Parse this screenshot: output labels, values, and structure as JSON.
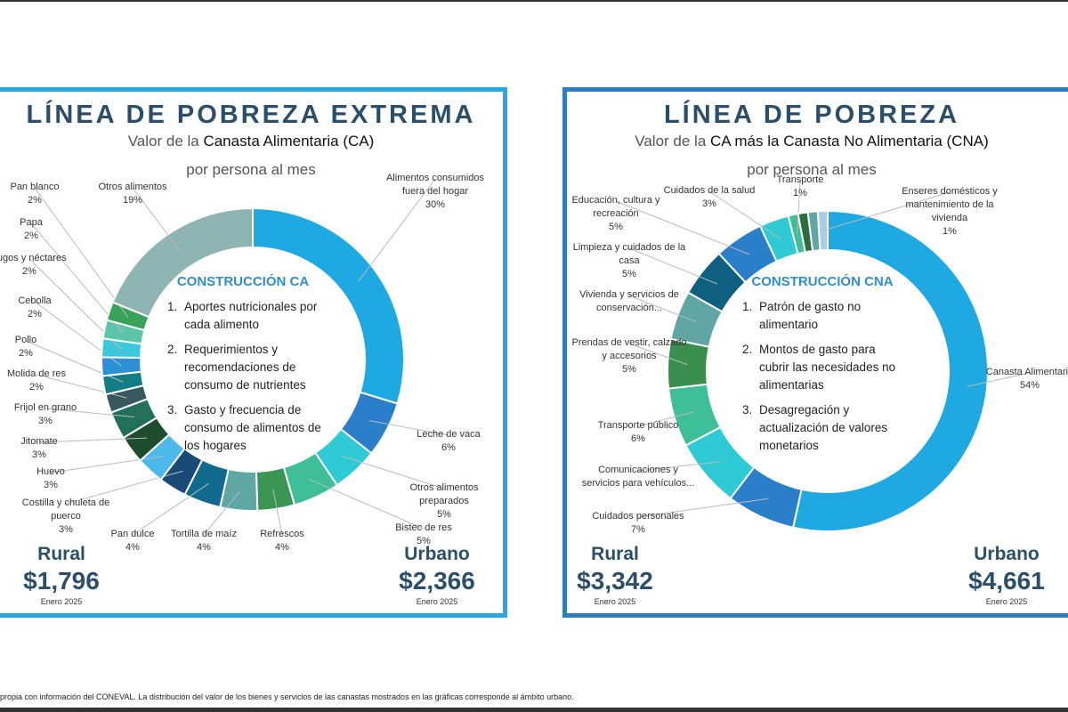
{
  "footer": "propia con información del CONEVAL. La distribución del valor de los bienes y servicios de las canastas mostrados en las gráficas corresponde al ámbito urbano.",
  "chart_data": [
    {
      "type": "pie",
      "variant": "donut",
      "title": "LÍNEA DE POBREZA EXTREMA",
      "subtitle_pre": "Valor de la ",
      "subtitle_bold": "Canasta Alimentaria (CA)",
      "subtitle2": "por persona al mes",
      "center_title": "CONSTRUCCIÓN CA",
      "center_items": [
        "Aportes nutricionales por cada alimento",
        "Requerimientos y recomendaciones de consumo de nutrientes",
        "Gasto y frecuencia de consumo de alimentos de los hogares"
      ],
      "slices": [
        {
          "name": "Alimentos consumidos fuera del hogar",
          "value": 30,
          "label": "30%",
          "color": "#1fa9e3"
        },
        {
          "name": "Leche de vaca",
          "value": 6,
          "label": "6%",
          "color": "#2b7fca"
        },
        {
          "name": "Otros alimentos preparados",
          "value": 5,
          "label": "5%",
          "color": "#2ecad6"
        },
        {
          "name": "Bistec de res",
          "value": 5,
          "label": "5%",
          "color": "#3ebf98"
        },
        {
          "name": "Refrescos",
          "value": 4,
          "label": "4%",
          "color": "#3a9552"
        },
        {
          "name": "Tortilla de maíz",
          "value": 4,
          "label": "4%",
          "color": "#5fa6a4"
        },
        {
          "name": "Pan dulce",
          "value": 4,
          "label": "4%",
          "color": "#0f6a8e"
        },
        {
          "name": "Costilla y chuleta de puerco",
          "value": 3,
          "label": "3%",
          "color": "#1a4a78"
        },
        {
          "name": "Huevo",
          "value": 3,
          "label": "3%",
          "color": "#4db9ea"
        },
        {
          "name": "Jitomate",
          "value": 3,
          "label": "3%",
          "color": "#1d4d2c"
        },
        {
          "name": "Frijol en grano",
          "value": 3,
          "label": "3%",
          "color": "#22705a"
        },
        {
          "name": "Molida de res",
          "value": 2,
          "label": "2%",
          "color": "#36585e"
        },
        {
          "name": "Pollo",
          "value": 2,
          "label": "2%",
          "color": "#137d85"
        },
        {
          "name": "Cebolla",
          "value": 2,
          "label": "2%",
          "color": "#2d8fd6"
        },
        {
          "name": "Jugos y néctares",
          "value": 2,
          "label": "2%",
          "color": "#3cc8dc"
        },
        {
          "name": "Papa",
          "value": 2,
          "label": "2%",
          "color": "#5cc4a8"
        },
        {
          "name": "Pan blanco",
          "value": 2,
          "label": "2%",
          "color": "#3aa35a"
        },
        {
          "name": "Otros alimentos",
          "value": 19,
          "label": "19%",
          "color": "#8fb5b3"
        }
      ],
      "stats": [
        {
          "area": "Rural",
          "value": "$1,796",
          "date": "Enero 2025"
        },
        {
          "area": "Urbano",
          "value": "$2,366",
          "date": "Enero 2025"
        }
      ]
    },
    {
      "type": "pie",
      "variant": "donut",
      "title": "LÍNEA DE POBREZA",
      "subtitle_pre": "Valor de la ",
      "subtitle_bold": "CA más la Canasta No Alimentaria (CNA)",
      "subtitle2": "por persona al mes",
      "center_title": "CONSTRUCCIÓN CNA",
      "center_items": [
        "Patrón de gasto no alimentario",
        "Montos de gasto para cubrir las necesidades no alimentarias",
        "Desagregación y actualización de valores monetarios"
      ],
      "slices": [
        {
          "name": "Canasta Alimentaria",
          "value": 54,
          "label": "54%",
          "color": "#1fa9e3"
        },
        {
          "name": "Cuidados personales",
          "value": 7,
          "label": "7%",
          "color": "#2b7fca"
        },
        {
          "name": "Comunicaciones y servicios para vehículos...",
          "value": 7,
          "label": "",
          "color": "#2ecad6"
        },
        {
          "name": "Transporte público",
          "value": 6,
          "label": "6%",
          "color": "#3ebf98"
        },
        {
          "name": "Prendas de vestir, calzado y accesorios",
          "value": 5,
          "label": "5%",
          "color": "#3a8f4f"
        },
        {
          "name": "Vivienda y servicios de conservación...",
          "value": 5,
          "label": "",
          "color": "#5fa6a4"
        },
        {
          "name": "Limpieza y cuidados de la casa",
          "value": 5,
          "label": "5%",
          "color": "#0f5f80"
        },
        {
          "name": "Educación, cultura y recreación",
          "value": 5,
          "label": "5%",
          "color": "#2b7fca"
        },
        {
          "name": "Cuidados de la salud",
          "value": 3,
          "label": "3%",
          "color": "#2ecad6"
        },
        {
          "name": "Transporte",
          "value": 1,
          "label": "1%",
          "color": "#3ebf98"
        },
        {
          "name": "",
          "value": 1,
          "label": "",
          "color": "#2a6e3e"
        },
        {
          "name": "",
          "value": 1,
          "label": "",
          "color": "#5fa6a4"
        },
        {
          "name": "Enseres domésticos y mantenimiento de la vivienda",
          "value": 1,
          "label": "1%",
          "color": "#a9cde8"
        }
      ],
      "stats": [
        {
          "area": "Rural",
          "value": "$3,342",
          "date": "Enero 2025"
        },
        {
          "area": "Urbano",
          "value": "$4,661",
          "date": "Enero 2025"
        }
      ]
    }
  ]
}
